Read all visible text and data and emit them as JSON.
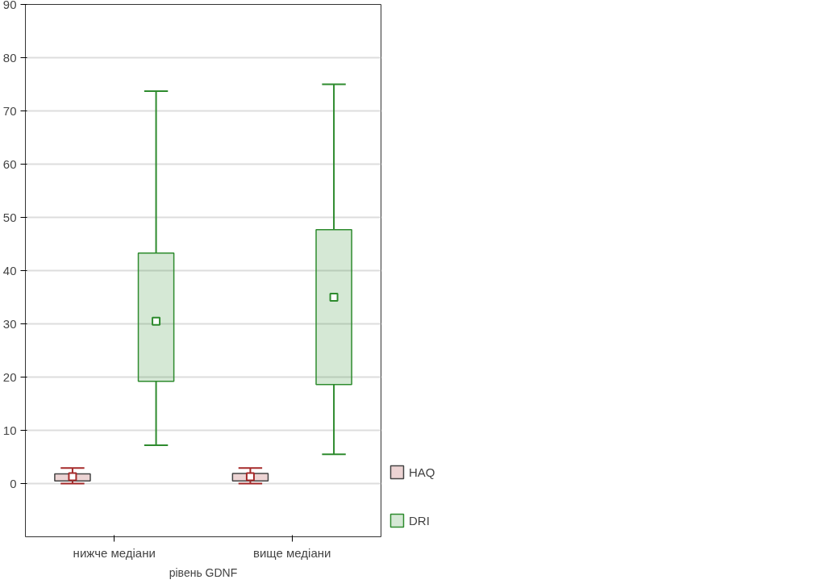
{
  "chart_data": {
    "type": "box",
    "xlabel": "рівень GDNF",
    "categories": [
      "нижче медіани",
      "вище медіани"
    ],
    "ylim": [
      -10,
      90
    ],
    "yticks": [
      0,
      10,
      20,
      30,
      40,
      50,
      60,
      70,
      80,
      90
    ],
    "grid": "y",
    "legend": "right",
    "marker": "square",
    "series": [
      {
        "name": "HAQ",
        "color": "#a52a2a",
        "boxes": [
          {
            "low": 0,
            "q1": 0.5,
            "median": 1.3,
            "q3": 1.8,
            "high": 2.9
          },
          {
            "low": 0,
            "q1": 0.5,
            "median": 1.3,
            "q3": 1.9,
            "high": 2.9
          }
        ]
      },
      {
        "name": "DRI",
        "color": "#2e8b2e",
        "boxes": [
          {
            "low": 7.2,
            "q1": 19.2,
            "median": 30.5,
            "q3": 43.3,
            "high": 73.7
          },
          {
            "low": 5.5,
            "q1": 18.6,
            "median": 35,
            "q3": 47.7,
            "high": 75
          }
        ]
      }
    ]
  }
}
